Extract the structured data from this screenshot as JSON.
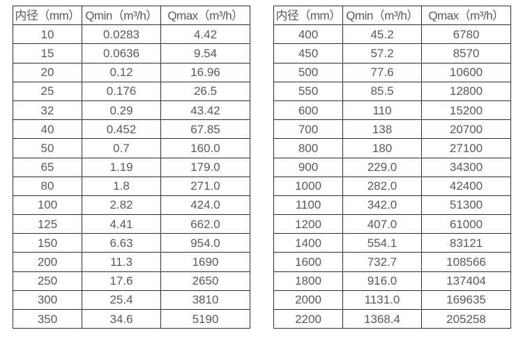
{
  "tables": [
    {
      "name": "small-diameter-flow-table",
      "headers": [
        "内径（mm）",
        "Qmin（m³/h）",
        "Qmax（m³/h）"
      ],
      "rows": [
        [
          "10",
          "0.0283",
          "4.42"
        ],
        [
          "15",
          "0.0636",
          "9.54"
        ],
        [
          "20",
          "0.12",
          "16.96"
        ],
        [
          "25",
          "0.176",
          "26.5"
        ],
        [
          "32",
          "0.29",
          "43.42"
        ],
        [
          "40",
          "0.452",
          "67.85"
        ],
        [
          "50",
          "0.7",
          "160.0"
        ],
        [
          "65",
          "1.19",
          "179.0"
        ],
        [
          "80",
          "1.8",
          "271.0"
        ],
        [
          "100",
          "2.82",
          "424.0"
        ],
        [
          "125",
          "4.41",
          "662.0"
        ],
        [
          "150",
          "6.63",
          "954.0"
        ],
        [
          "200",
          "11.3",
          "1690"
        ],
        [
          "250",
          "17.6",
          "2650"
        ],
        [
          "300",
          "25.4",
          "3810"
        ],
        [
          "350",
          "34.6",
          "5190"
        ]
      ]
    },
    {
      "name": "large-diameter-flow-table",
      "headers": [
        "内径（mm）",
        "Qmin（m³/h）",
        "Qmax（m³/h）"
      ],
      "rows": [
        [
          "400",
          "45.2",
          "6780"
        ],
        [
          "450",
          "57.2",
          "8570"
        ],
        [
          "500",
          "77.6",
          "10600"
        ],
        [
          "550",
          "85.5",
          "12800"
        ],
        [
          "600",
          "110",
          "15200"
        ],
        [
          "700",
          "138",
          "20700"
        ],
        [
          "800",
          "180",
          "27100"
        ],
        [
          "900",
          "229.0",
          "34300"
        ],
        [
          "1000",
          "282.0",
          "42400"
        ],
        [
          "1100",
          "342.0",
          "51300"
        ],
        [
          "1200",
          "407.0",
          "61000"
        ],
        [
          "1400",
          "554.1",
          "83121"
        ],
        [
          "1600",
          "732.7",
          "108566"
        ],
        [
          "1800",
          "916.0",
          "137404"
        ],
        [
          "2000",
          "1131.0",
          "169635"
        ],
        [
          "2200",
          "1368.4",
          "205258"
        ]
      ]
    }
  ],
  "colors": {
    "border": "#2e2e2e",
    "text": "#595959",
    "background": "#ffffff"
  }
}
